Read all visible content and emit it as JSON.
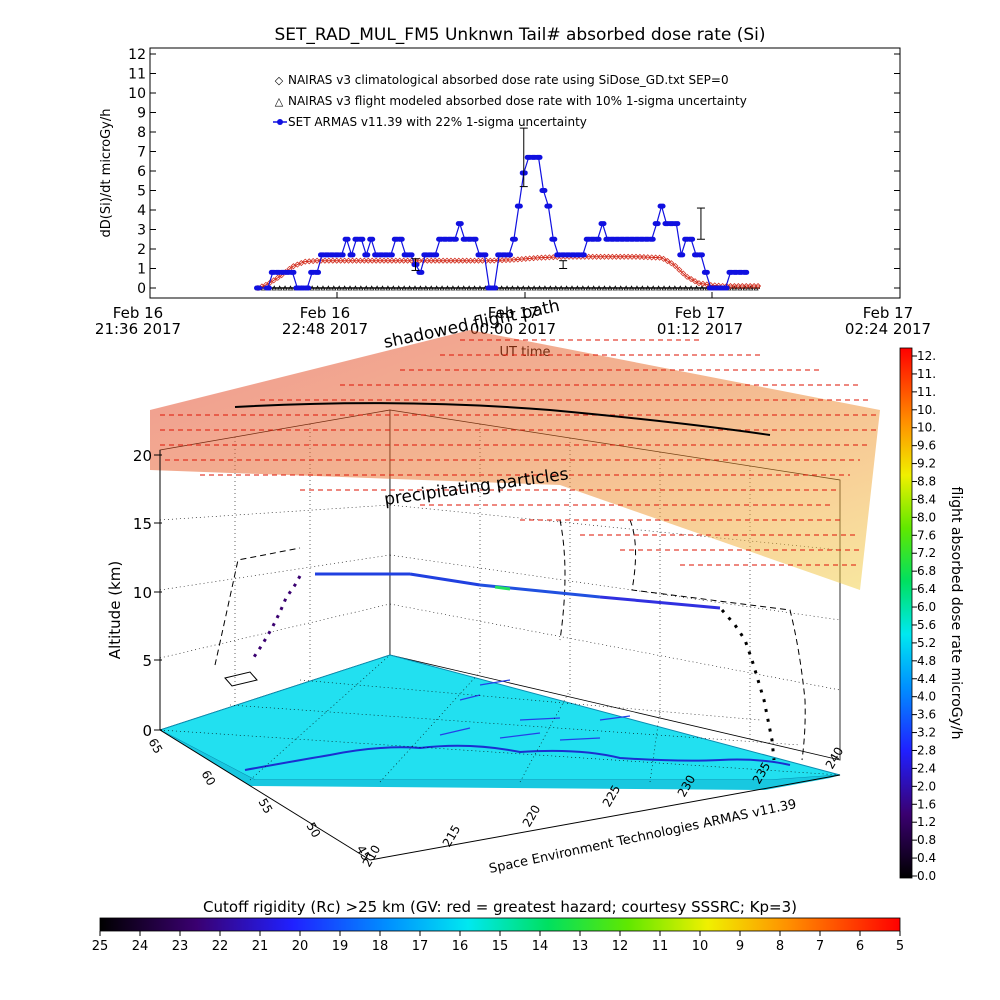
{
  "chart_data": [
    {
      "type": "line",
      "title": "SET_RAD_MUL_FM5 Unknwn Tail#  absorbed dose rate (Si)",
      "ylabel": "dD(Si)/dt microGy/h",
      "xlabel": "UT time",
      "ylim": [
        0,
        12
      ],
      "y_ticks": [
        "0",
        "1",
        "2",
        "3",
        "4",
        "5",
        "6",
        "7",
        "8",
        "9",
        "10",
        "11",
        "12"
      ],
      "x_ticks": [
        {
          "line1": "Feb 16",
          "line2": "21:36 2017"
        },
        {
          "line1": "Feb 16",
          "line2": "22:48 2017"
        },
        {
          "line1": "Feb 17",
          "line2": "00:00 2017"
        },
        {
          "line1": "Feb 17",
          "line2": "01:12 2017"
        },
        {
          "line1": "Feb 17",
          "line2": "02:24 2017"
        }
      ],
      "legend_position": "top-left",
      "series": [
        {
          "name": "NAIRAS v3 climatological absorbed dose rate using SiDose_GD.txt SEP=0",
          "color": "#d33020",
          "x": [
            -4,
            0,
            5,
            10,
            15,
            20,
            25,
            30,
            40,
            50,
            60,
            70,
            80,
            90,
            100,
            110,
            120,
            130,
            140,
            150,
            160,
            165,
            170,
            175,
            180,
            185,
            190,
            200
          ],
          "values": [
            0,
            0.2,
            0.6,
            1.1,
            1.35,
            1.4,
            1.4,
            1.4,
            1.4,
            1.4,
            1.4,
            1.4,
            1.4,
            1.4,
            1.45,
            1.55,
            1.6,
            1.6,
            1.6,
            1.6,
            1.55,
            1.2,
            0.6,
            0.25,
            0.15,
            0.1,
            0.1,
            0.1
          ]
        },
        {
          "name": "NAIRAS v3 flight modeled absorbed dose rate with 10% 1-sigma uncertainty",
          "color": "#000000",
          "x": [
            -4,
            200
          ],
          "values": [
            0,
            0
          ]
        },
        {
          "name": "SET ARMAS v11.39 with 22% 1-sigma uncertainty",
          "color": "#1010e0",
          "x": [
            -4,
            0,
            2,
            4,
            6,
            8,
            10,
            12,
            14,
            16,
            18,
            20,
            22,
            24,
            26,
            28,
            30,
            32,
            34,
            36,
            38,
            40,
            42,
            44,
            46,
            48,
            50,
            52,
            54,
            56,
            58,
            60,
            62,
            64,
            66,
            68,
            70,
            72,
            74,
            76,
            78,
            80,
            82,
            84,
            86,
            88,
            90,
            92,
            94,
            96,
            98,
            100,
            102,
            104,
            106,
            108,
            110,
            112,
            114,
            116,
            118,
            120,
            122,
            124,
            126,
            128,
            130,
            132,
            134,
            136,
            138,
            140,
            142,
            144,
            146,
            148,
            150,
            152,
            154,
            156,
            158,
            160,
            162,
            164,
            166,
            168,
            170,
            172,
            174,
            176,
            178,
            180,
            182,
            184,
            186,
            188,
            190,
            192,
            194
          ],
          "values": [
            0,
            0,
            0.8,
            0.8,
            0.8,
            0.8,
            0.8,
            0,
            0,
            0,
            0.8,
            0.8,
            1.7,
            1.7,
            1.7,
            1.7,
            1.7,
            2.5,
            1.7,
            2.5,
            2.5,
            1.7,
            2.5,
            1.7,
            1.7,
            1.7,
            1.7,
            2.5,
            2.5,
            1.7,
            1.7,
            1.2,
            0.8,
            1.7,
            1.7,
            1.7,
            2.5,
            2.5,
            2.5,
            2.5,
            3.3,
            2.5,
            2.5,
            2.5,
            1.7,
            1.7,
            0,
            0,
            1.7,
            1.7,
            1.7,
            2.5,
            4.2,
            5.9,
            6.7,
            6.7,
            6.7,
            5.0,
            4.2,
            2.5,
            1.7,
            1.7,
            1.7,
            1.7,
            1.7,
            1.7,
            2.5,
            2.5,
            2.5,
            3.3,
            2.5,
            2.5,
            2.5,
            2.5,
            2.5,
            2.5,
            2.5,
            2.5,
            2.5,
            2.5,
            3.3,
            4.2,
            3.3,
            3.3,
            3.3,
            1.7,
            2.5,
            2.5,
            1.7,
            1.7,
            0.8,
            0,
            0,
            0,
            0,
            0.8,
            0.8,
            0.8,
            0.8
          ]
        }
      ]
    },
    {
      "type": "scatter",
      "subtype": "3d-trajectory",
      "zlabel": "Altitude (km)",
      "z_ticks": [
        "0",
        "5",
        "10",
        "15",
        "20"
      ],
      "lat_ticks": [
        "65",
        "60",
        "55",
        "50",
        "45"
      ],
      "lon_ticks": [
        "210",
        "215",
        "220",
        "225",
        "230",
        "235",
        "240"
      ],
      "annotations": [
        "shadowed flight path",
        "precipitating particles"
      ],
      "credit": "Space Environment Technologies ARMAS v11.39"
    },
    {
      "type": "heatmap",
      "subtype": "colorbar",
      "label": "flight absorbed dose rate microGy/h",
      "ticks": [
        "0.0",
        "0.4",
        "0.8",
        "1.2",
        "1.6",
        "2.0",
        "2.4",
        "2.8",
        "3.2",
        "3.6",
        "4.0",
        "4.4",
        "4.8",
        "5.2",
        "5.6",
        "6.0",
        "6.4",
        "6.8",
        "7.2",
        "7.6",
        "8.0",
        "8.4",
        "8.8",
        "9.2",
        "9.6",
        "10.",
        "10.",
        "11.",
        "11.",
        "12."
      ]
    },
    {
      "type": "heatmap",
      "subtype": "colorbar",
      "label": "Cutoff rigidity (Rc) >25 km (GV: red = greatest hazard; courtesy SSSRC; Kp=3)",
      "ticks": [
        "25",
        "24",
        "23",
        "22",
        "21",
        "20",
        "19",
        "18",
        "17",
        "16",
        "15",
        "14",
        "13",
        "12",
        "11",
        "10",
        "9",
        "8",
        "7",
        "6",
        "5"
      ]
    }
  ]
}
